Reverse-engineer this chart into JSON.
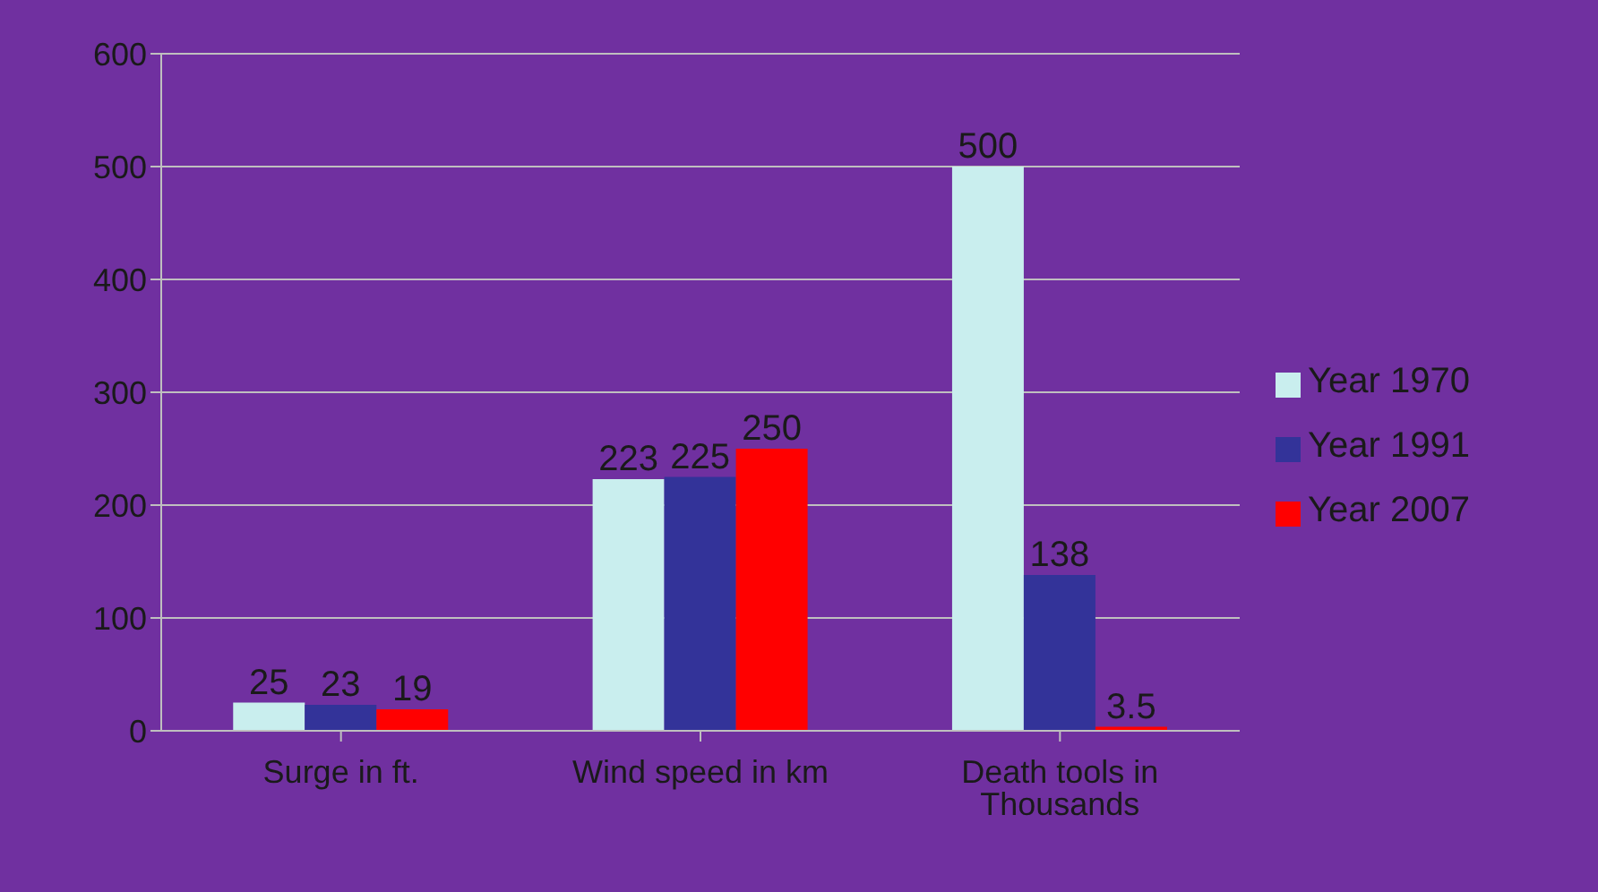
{
  "chart_data": {
    "type": "bar",
    "categories": [
      "Surge in ft.",
      "Wind speed in km",
      "Death tools in Thousands"
    ],
    "series": [
      {
        "name": "Year 1970",
        "color": "#c9eeee",
        "values": [
          25,
          223,
          500
        ]
      },
      {
        "name": "Year 1991",
        "color": "#333399",
        "values": [
          23,
          225,
          138
        ]
      },
      {
        "name": "Year 2007",
        "color": "#ff0000",
        "values": [
          19,
          250,
          3.5
        ]
      }
    ],
    "ylim": [
      0,
      600
    ],
    "yticks": [
      0,
      100,
      200,
      300,
      400,
      500,
      600
    ],
    "grid": "y",
    "legend": "right",
    "data_labels": true
  }
}
